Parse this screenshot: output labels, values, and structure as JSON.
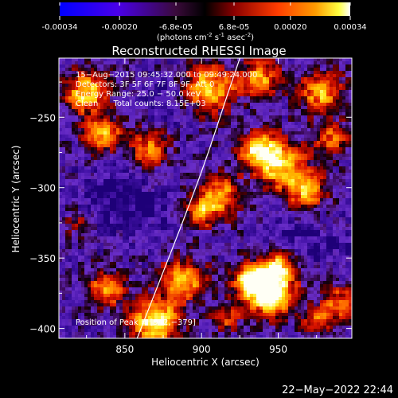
{
  "colorbar": {
    "tick_labels": [
      "-0.00034",
      "-0.00020",
      "-6.8e-05",
      "6.8e-05",
      "0.00020",
      "0.00034"
    ],
    "tick_values": [
      -0.00034,
      -0.0002,
      -6.8e-05,
      6.8e-05,
      0.0002,
      0.00034
    ],
    "range": [
      -0.00034,
      0.00034
    ],
    "units_main": "(photons cm",
    "units_exp1": "-2",
    "units_mid": " s",
    "units_exp2": "-1",
    "units_end": " asec",
    "units_exp3": "-2",
    "units_close": ")",
    "colors": [
      "#0000ff",
      "#7a00d8",
      "#d00000",
      "#ff8000",
      "#ffff00",
      "#ffffff"
    ]
  },
  "chart_data": {
    "type": "heatmap",
    "title": "Reconstructed RHESSI Image",
    "xlabel": "Heliocentric X (arcsec)",
    "ylabel": "Heliocentric Y (arcsec)",
    "xlim": [
      807,
      998
    ],
    "ylim": [
      -407,
      -208
    ],
    "xticks": [
      850,
      900,
      950
    ],
    "yticks": [
      -250,
      -300,
      -350,
      -400
    ],
    "xtick_labels": [
      "850",
      "900",
      "950"
    ],
    "ytick_labels": [
      "−250",
      "−300",
      "−350",
      "−400"
    ],
    "grid": false,
    "limb_curve": [
      [
        858,
        -407
      ],
      [
        875,
        -360
      ],
      [
        890,
        -318
      ],
      [
        903,
        -280
      ],
      [
        915,
        -240
      ],
      [
        925,
        -208
      ]
    ],
    "blobs": [
      {
        "x": 945,
        "y": -374,
        "sigma": 11,
        "amp": 1.0
      },
      {
        "x": 932,
        "y": -365,
        "sigma": 8,
        "amp": 0.7
      },
      {
        "x": 950,
        "y": -355,
        "sigma": 7,
        "amp": 0.6
      },
      {
        "x": 870,
        "y": -395,
        "sigma": 11,
        "amp": 0.8
      },
      {
        "x": 888,
        "y": -365,
        "sigma": 10,
        "amp": 0.65
      },
      {
        "x": 838,
        "y": -372,
        "sigma": 9,
        "amp": 0.55
      },
      {
        "x": 950,
        "y": -282,
        "sigma": 12,
        "amp": 0.75
      },
      {
        "x": 935,
        "y": -272,
        "sigma": 8,
        "amp": 0.55
      },
      {
        "x": 968,
        "y": -302,
        "sigma": 9,
        "amp": 0.6
      },
      {
        "x": 912,
        "y": -305,
        "sigma": 9,
        "amp": 0.6
      },
      {
        "x": 900,
        "y": -318,
        "sigma": 8,
        "amp": 0.5
      },
      {
        "x": 825,
        "y": -232,
        "sigma": 10,
        "amp": 0.7
      },
      {
        "x": 835,
        "y": -262,
        "sigma": 9,
        "amp": 0.6
      },
      {
        "x": 866,
        "y": -272,
        "sigma": 9,
        "amp": 0.5
      },
      {
        "x": 905,
        "y": -230,
        "sigma": 12,
        "amp": 0.65
      },
      {
        "x": 938,
        "y": -222,
        "sigma": 9,
        "amp": 0.55
      },
      {
        "x": 978,
        "y": -232,
        "sigma": 10,
        "amp": 0.6
      },
      {
        "x": 985,
        "y": -265,
        "sigma": 8,
        "amp": 0.45
      },
      {
        "x": 990,
        "y": -382,
        "sigma": 8,
        "amp": 0.5
      },
      {
        "x": 975,
        "y": -395,
        "sigma": 7,
        "amp": 0.4
      },
      {
        "x": 915,
        "y": -392,
        "sigma": 7,
        "amp": 0.4
      },
      {
        "x": 820,
        "y": -325,
        "sigma": 7,
        "amp": 0.3
      }
    ],
    "cold_regions": [
      {
        "x": 840,
        "y": -310,
        "sigma": 16,
        "amp": 0.5
      },
      {
        "x": 872,
        "y": -315,
        "sigma": 10,
        "amp": 0.4
      },
      {
        "x": 878,
        "y": -238,
        "sigma": 12,
        "amp": 0.4
      },
      {
        "x": 960,
        "y": -335,
        "sigma": 12,
        "amp": 0.35
      },
      {
        "x": 985,
        "y": -340,
        "sigma": 10,
        "amp": 0.35
      }
    ]
  },
  "info": {
    "line1": "15−Aug−2015 09:45:32.000 to 09:49:24.000",
    "line2": "Detectors: 3F 5F 6F 7F 8F 9F, Att 0",
    "line3": "Energy Range: 25.0 − 50.0 keV",
    "line4": "Clean      Total counts: 8.15E+03",
    "peak": "Position of Peak = [942,−379]"
  },
  "footer": {
    "timestamp": "22−May−2022 22:44"
  }
}
